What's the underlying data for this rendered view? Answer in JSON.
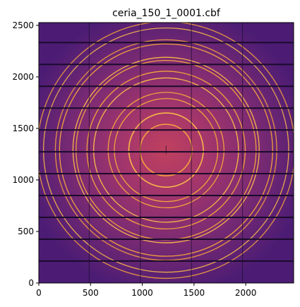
{
  "title": "ceria_150_1_0001.cbf",
  "x_axis": {
    "range": [
      0,
      2463
    ],
    "ticks": [
      0,
      500,
      1000,
      1500,
      2000
    ],
    "tick_labels": [
      "0",
      "500",
      "1000",
      "1500",
      "2000"
    ]
  },
  "y_axis": {
    "range": [
      0,
      2527
    ],
    "ticks": [
      0,
      500,
      1000,
      1500,
      2000,
      2500
    ],
    "tick_labels": [
      "0",
      "500",
      "1000",
      "1500",
      "2000",
      "2500"
    ]
  },
  "image": {
    "type": "diffraction_pattern",
    "colormap": "magma",
    "beam_center": [
      1230,
      1290
    ],
    "ring_radii": [
      250,
      360,
      500,
      560,
      700,
      765,
      870,
      900,
      1030,
      1070,
      1185,
      1245
    ],
    "detector_gaps_x": [
      487,
      981,
      1475,
      1969
    ],
    "detector_gaps_y": [
      213,
      425,
      637,
      849,
      1061,
      1273,
      1485,
      1697,
      1909,
      2121,
      2333
    ],
    "colors": {
      "background_far": "#4b1a78",
      "background_mid": "#8a2d76",
      "background_center": "#d8465e",
      "ring": "#f7a73a",
      "ring_bright": "#fbbd48",
      "gap": "#1a0b2c"
    }
  }
}
